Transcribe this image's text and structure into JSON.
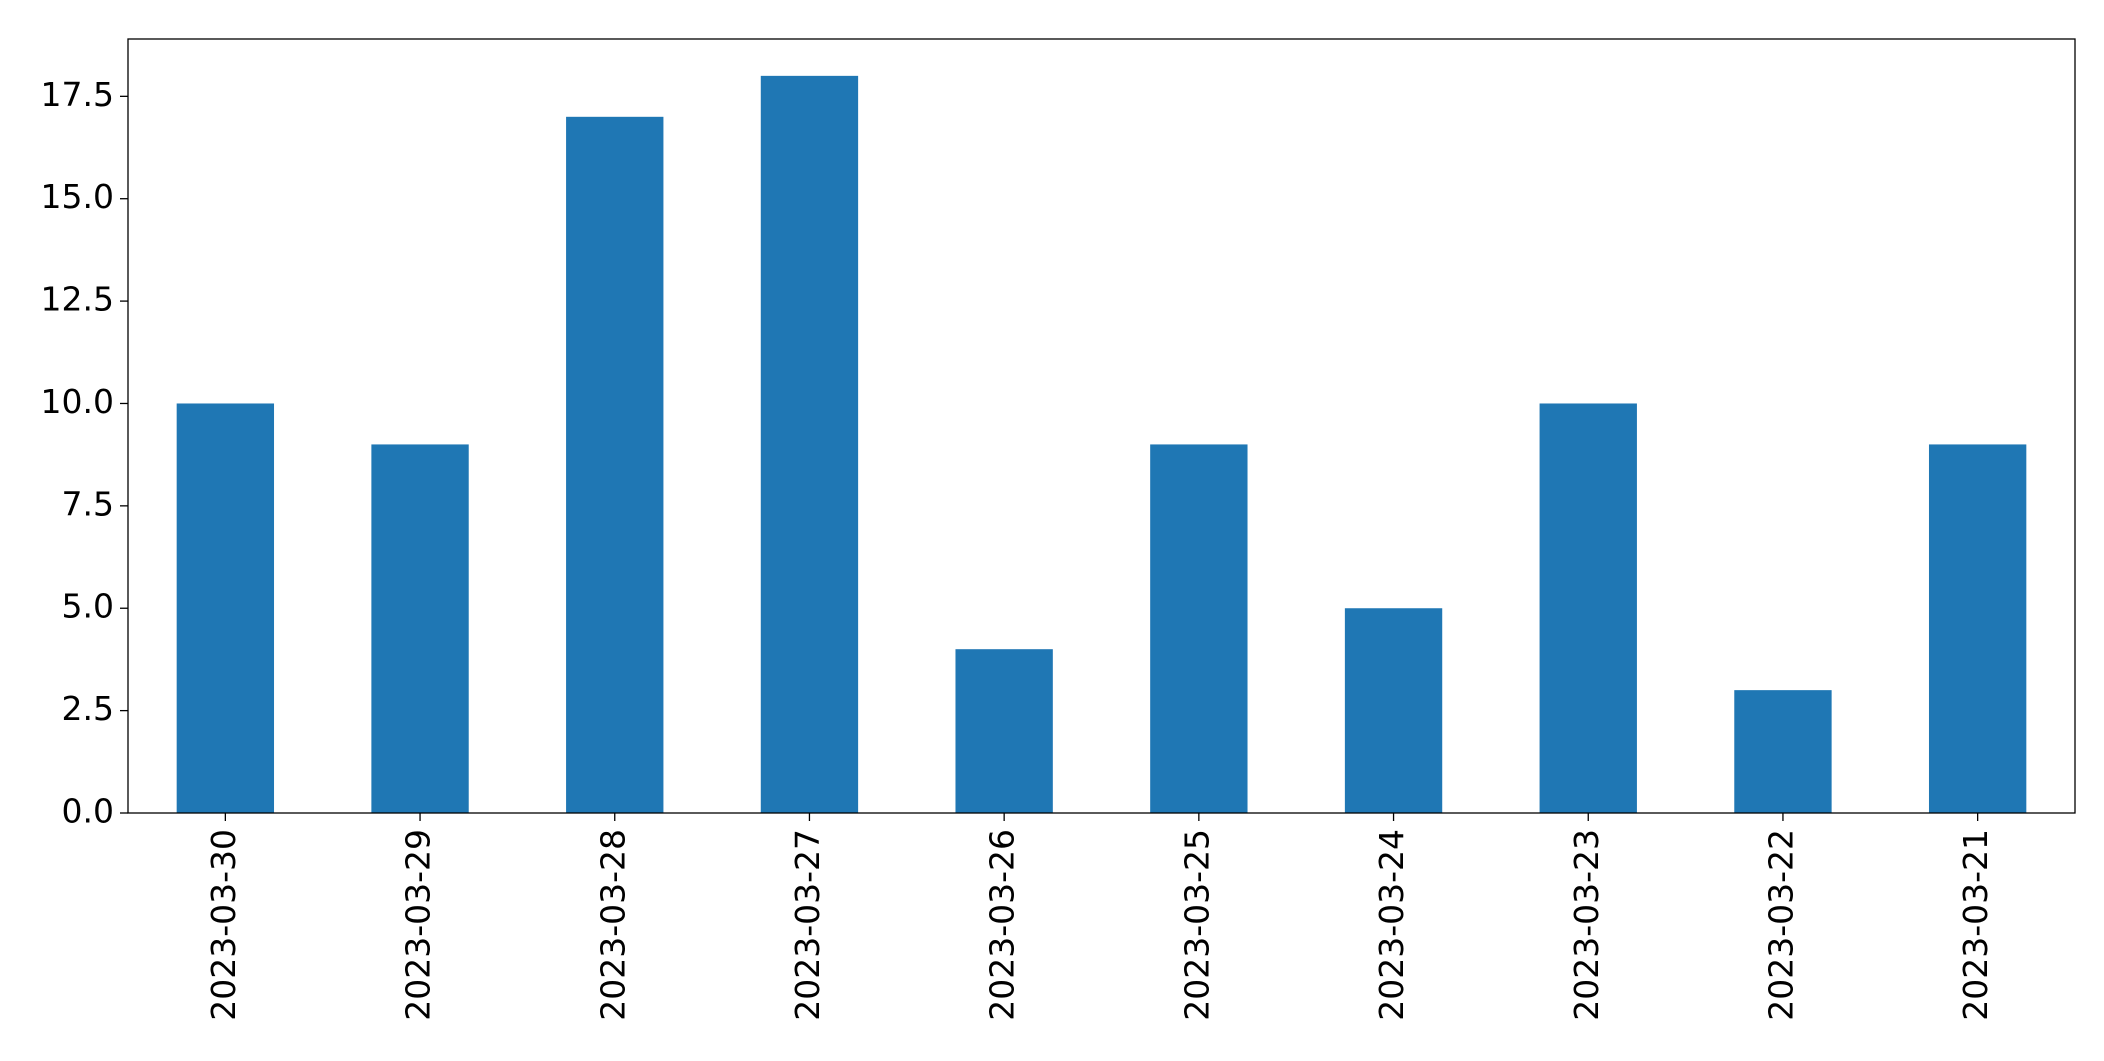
{
  "chart_data": {
    "type": "bar",
    "categories": [
      "2023-03-30",
      "2023-03-29",
      "2023-03-28",
      "2023-03-27",
      "2023-03-26",
      "2023-03-25",
      "2023-03-24",
      "2023-03-23",
      "2023-03-22",
      "2023-03-21"
    ],
    "values": [
      10,
      9,
      17,
      18,
      4,
      9,
      5,
      10,
      3,
      9
    ],
    "color": "#1f77b4",
    "ylim": [
      0,
      18.9
    ],
    "yticks": [
      {
        "value": 0,
        "label": "0.0"
      },
      {
        "value": 2.5,
        "label": "2.5"
      },
      {
        "value": 5,
        "label": "5.0"
      },
      {
        "value": 7.5,
        "label": "7.5"
      },
      {
        "value": 10,
        "label": "10.0"
      },
      {
        "value": 12.5,
        "label": "12.5"
      },
      {
        "value": 15,
        "label": "15.0"
      },
      {
        "value": 17.5,
        "label": "17.5"
      }
    ],
    "grid": false
  }
}
